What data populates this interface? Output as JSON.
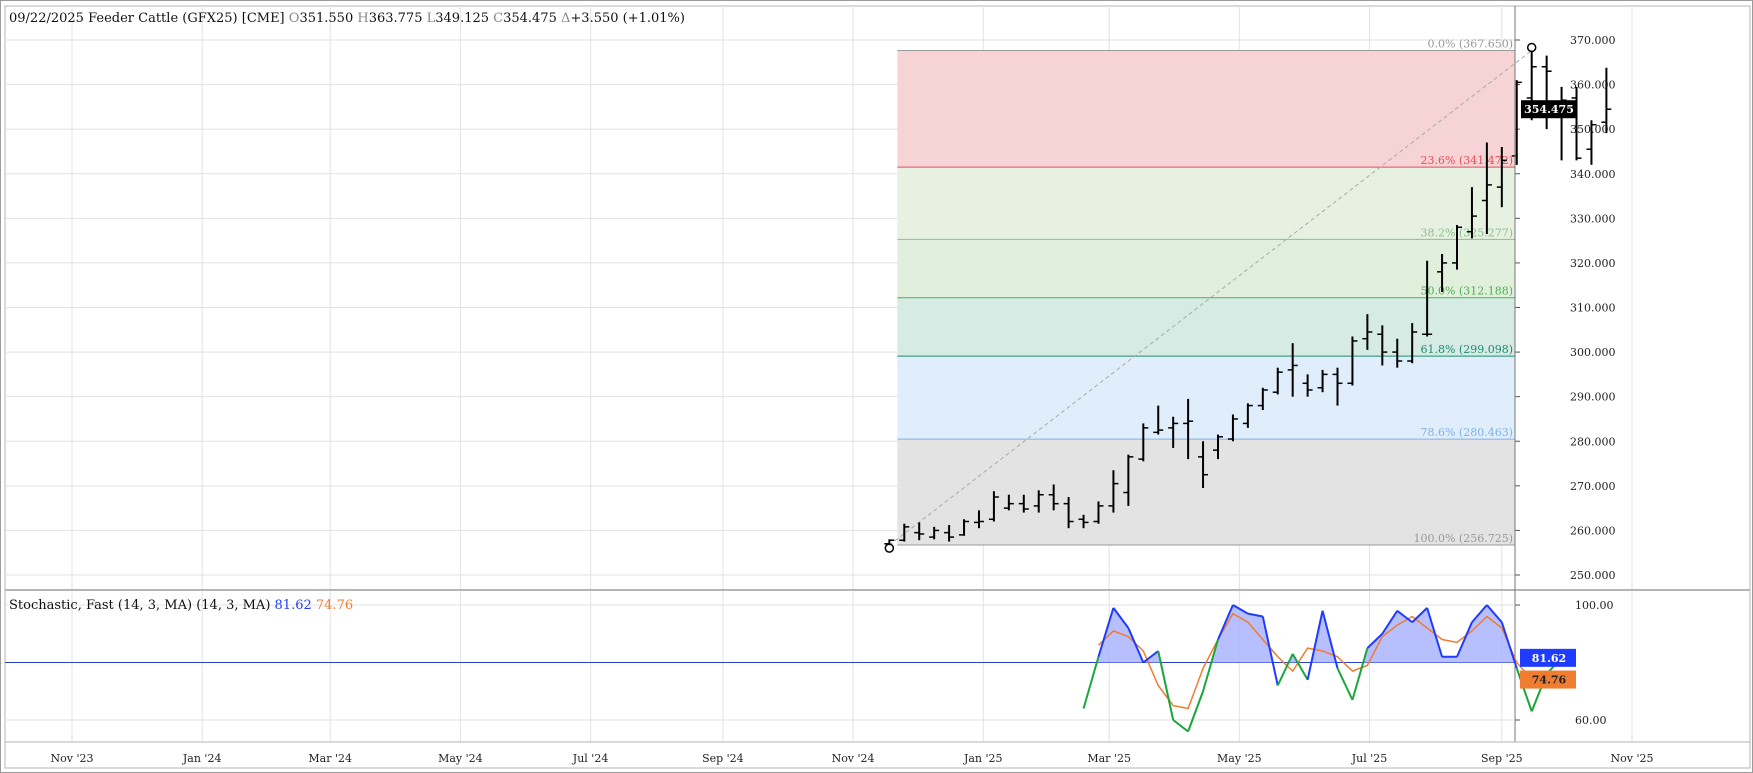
{
  "header": {
    "date": "09/22/2025",
    "instrument": "Feeder Cattle (GFX25) [CME]",
    "open_label": "O",
    "open": "351.550",
    "high_label": "H",
    "high": "363.775",
    "low_label": "L",
    "low": "349.125",
    "close_label": "C",
    "close": "354.475",
    "change_label": "Δ",
    "change": "+3.550 (+1.01%)"
  },
  "stoch_header": {
    "name": "Stochastic, Fast (14, 3, MA)",
    "params": "(14, 3, MA)",
    "k_value": "81.62",
    "d_value": "74.76"
  },
  "colors": {
    "up_bar": "#000000",
    "k_line_above": "#1f3bff",
    "k_line_below": "#19a63a",
    "d_line": "#f07c30",
    "k_fill": "#aab4ff",
    "price_tag_bg": "#000000",
    "k_tag_bg": "#1f3bff",
    "d_tag_bg": "#f07c30"
  },
  "chart_data": {
    "type": "ohlc",
    "price_axis": {
      "ylim": [
        245,
        373
      ],
      "ticks": [
        "370.000",
        "360.000",
        "350.000",
        "340.000",
        "330.000",
        "320.000",
        "310.000",
        "300.000",
        "290.000",
        "280.000",
        "270.000",
        "260.000",
        "250.000"
      ]
    },
    "time_axis": {
      "ticks": [
        {
          "label": "Nov '23",
          "date": "2023-11-01"
        },
        {
          "label": "Jan '24",
          "date": "2024-01-01"
        },
        {
          "label": "Mar '24",
          "date": "2024-03-01"
        },
        {
          "label": "May '24",
          "date": "2024-05-01"
        },
        {
          "label": "Jul '24",
          "date": "2024-07-01"
        },
        {
          "label": "Sep '24",
          "date": "2024-09-01"
        },
        {
          "label": "Nov '24",
          "date": "2024-11-01"
        },
        {
          "label": "Jan '25",
          "date": "2025-01-01"
        },
        {
          "label": "Mar '25",
          "date": "2025-03-01"
        },
        {
          "label": "May '25",
          "date": "2025-05-01"
        },
        {
          "label": "Jul '25",
          "date": "2025-07-01"
        },
        {
          "label": "Sep '25",
          "date": "2025-09-01"
        },
        {
          "label": "Nov '25",
          "date": "2025-11-01"
        }
      ]
    },
    "last_price_label": "354.475",
    "fibonacci": {
      "levels": [
        {
          "label": "0.0% (367.650)",
          "price": 367.65,
          "color": "#999999"
        },
        {
          "label": "23.6% (341.472)",
          "price": 341.472,
          "color": "#e0505a"
        },
        {
          "label": "38.2% (325.277)",
          "price": 325.277,
          "color": "#8cc08c"
        },
        {
          "label": "50.0% (312.188)",
          "price": 312.188,
          "color": "#4caf50"
        },
        {
          "label": "61.8% (299.098)",
          "price": 299.098,
          "color": "#1f8a70"
        },
        {
          "label": "78.6% (280.463)",
          "price": 280.463,
          "color": "#7fb2e8"
        },
        {
          "label": "100.0% (256.725)",
          "price": 256.725,
          "color": "#999999"
        }
      ],
      "zones": [
        {
          "from": 367.65,
          "to": 341.472,
          "color": "#f6d4d6"
        },
        {
          "from": 341.472,
          "to": 325.277,
          "color": "#e6f1e2"
        },
        {
          "from": 325.277,
          "to": 312.188,
          "color": "#e1f0dc"
        },
        {
          "from": 312.188,
          "to": 299.098,
          "color": "#d6ebe3"
        },
        {
          "from": 299.098,
          "to": 280.463,
          "color": "#e0eefb"
        },
        {
          "from": 280.463,
          "to": 256.725,
          "color": "#e3e3e3"
        }
      ],
      "start_date": "2024-11-18",
      "end_date": "2025-08-25"
    },
    "bars": [
      {
        "date": "2024-11-18",
        "o": 257.0,
        "h": 258.0,
        "l": 256.7,
        "c": 257.8
      },
      {
        "date": "2024-11-25",
        "o": 257.8,
        "h": 261.5,
        "l": 257.5,
        "c": 260.8
      },
      {
        "date": "2024-12-02",
        "o": 259.5,
        "h": 261.8,
        "l": 257.8,
        "c": 259.2
      },
      {
        "date": "2024-12-09",
        "o": 258.5,
        "h": 260.8,
        "l": 258.0,
        "c": 260.0
      },
      {
        "date": "2024-12-16",
        "o": 259.5,
        "h": 261.2,
        "l": 257.5,
        "c": 258.5
      },
      {
        "date": "2024-12-23",
        "o": 259.0,
        "h": 262.5,
        "l": 258.8,
        "c": 262.0
      },
      {
        "date": "2024-12-30",
        "o": 261.8,
        "h": 264.5,
        "l": 260.5,
        "c": 262.0
      },
      {
        "date": "2025-01-06",
        "o": 262.5,
        "h": 268.8,
        "l": 262.0,
        "c": 267.5
      },
      {
        "date": "2025-01-13",
        "o": 265.0,
        "h": 268.0,
        "l": 264.5,
        "c": 266.0
      },
      {
        "date": "2025-01-20",
        "o": 266.0,
        "h": 268.0,
        "l": 264.0,
        "c": 264.8
      },
      {
        "date": "2025-01-27",
        "o": 265.5,
        "h": 269.0,
        "l": 264.0,
        "c": 268.0
      },
      {
        "date": "2025-02-03",
        "o": 268.0,
        "h": 270.3,
        "l": 264.5,
        "c": 266.0
      },
      {
        "date": "2025-02-10",
        "o": 266.0,
        "h": 267.5,
        "l": 260.5,
        "c": 262.0
      },
      {
        "date": "2025-02-17",
        "o": 262.5,
        "h": 263.5,
        "l": 260.5,
        "c": 261.8
      },
      {
        "date": "2025-02-24",
        "o": 262.0,
        "h": 266.5,
        "l": 261.5,
        "c": 265.5
      },
      {
        "date": "2025-03-03",
        "o": 265.5,
        "h": 273.5,
        "l": 264.0,
        "c": 270.5
      },
      {
        "date": "2025-03-10",
        "o": 268.5,
        "h": 277.0,
        "l": 265.5,
        "c": 276.5
      },
      {
        "date": "2025-03-17",
        "o": 276.0,
        "h": 284.0,
        "l": 275.5,
        "c": 283.0
      },
      {
        "date": "2025-03-24",
        "o": 282.0,
        "h": 288.0,
        "l": 281.5,
        "c": 282.5
      },
      {
        "date": "2025-03-31",
        "o": 283.0,
        "h": 285.5,
        "l": 278.5,
        "c": 284.0
      },
      {
        "date": "2025-04-07",
        "o": 284.0,
        "h": 289.5,
        "l": 276.0,
        "c": 284.5
      },
      {
        "date": "2025-04-14",
        "o": 276.5,
        "h": 280.0,
        "l": 269.5,
        "c": 272.5
      },
      {
        "date": "2025-04-21",
        "o": 278.0,
        "h": 281.5,
        "l": 276.0,
        "c": 281.0
      },
      {
        "date": "2025-04-28",
        "o": 280.5,
        "h": 286.0,
        "l": 280.0,
        "c": 285.0
      },
      {
        "date": "2025-05-05",
        "o": 284.0,
        "h": 288.5,
        "l": 283.0,
        "c": 288.0
      },
      {
        "date": "2025-05-12",
        "o": 288.0,
        "h": 292.0,
        "l": 287.0,
        "c": 291.5
      },
      {
        "date": "2025-05-19",
        "o": 291.0,
        "h": 296.5,
        "l": 290.5,
        "c": 295.5
      },
      {
        "date": "2025-05-26",
        "o": 296.0,
        "h": 302.0,
        "l": 290.0,
        "c": 297.0
      },
      {
        "date": "2025-06-02",
        "o": 293.0,
        "h": 295.0,
        "l": 290.0,
        "c": 291.5
      },
      {
        "date": "2025-06-09",
        "o": 292.0,
        "h": 296.0,
        "l": 291.0,
        "c": 295.0
      },
      {
        "date": "2025-06-16",
        "o": 295.0,
        "h": 296.5,
        "l": 288.0,
        "c": 293.0
      },
      {
        "date": "2025-06-23",
        "o": 293.0,
        "h": 303.5,
        "l": 292.5,
        "c": 302.5
      },
      {
        "date": "2025-06-30",
        "o": 303.0,
        "h": 308.5,
        "l": 300.5,
        "c": 304.5
      },
      {
        "date": "2025-07-07",
        "o": 304.0,
        "h": 306.0,
        "l": 297.0,
        "c": 300.0
      },
      {
        "date": "2025-07-14",
        "o": 300.0,
        "h": 303.0,
        "l": 296.5,
        "c": 298.0
      },
      {
        "date": "2025-07-21",
        "o": 298.0,
        "h": 306.5,
        "l": 297.5,
        "c": 304.5
      },
      {
        "date": "2025-07-28",
        "o": 304.0,
        "h": 320.5,
        "l": 303.5,
        "c": 304.0
      },
      {
        "date": "2025-08-04",
        "o": 318.0,
        "h": 322.0,
        "l": 313.5,
        "c": 320.0
      },
      {
        "date": "2025-08-11",
        "o": 320.0,
        "h": 328.5,
        "l": 318.5,
        "c": 328.0
      },
      {
        "date": "2025-08-18",
        "o": 327.0,
        "h": 337.0,
        "l": 325.5,
        "c": 330.5
      },
      {
        "date": "2025-08-25",
        "o": 334.0,
        "h": 347.0,
        "l": 326.5,
        "c": 337.5
      },
      {
        "date": "2025-09-01",
        "o": 337.0,
        "h": 346.0,
        "l": 332.5,
        "c": 343.0
      },
      {
        "date": "2025-09-08",
        "o": 344.0,
        "h": 361.0,
        "l": 342.0,
        "c": 360.5
      },
      {
        "date": "2025-09-15",
        "o": 357.0,
        "h": 367.65,
        "l": 352.0,
        "c": 364.0
      },
      {
        "date": "2025-09-22",
        "o": 364.0,
        "h": 366.5,
        "l": 350.0,
        "c": 363.0
      },
      {
        "date": "2025-09-29",
        "o": 355.0,
        "h": 359.5,
        "l": 343.0,
        "c": 356.5
      },
      {
        "date": "2025-10-06",
        "o": 357.0,
        "h": 359.5,
        "l": 343.0,
        "c": 343.5
      },
      {
        "date": "2025-10-13",
        "o": 345.5,
        "h": 352.0,
        "l": 342.0,
        "c": 351.0
      },
      {
        "date": "2025-10-20",
        "o": 351.55,
        "h": 363.775,
        "l": 349.125,
        "c": 354.475
      }
    ],
    "stochastic": {
      "ylim": [
        50,
        105
      ],
      "ticks": [
        "100.00",
        "60.00"
      ],
      "reference_level": 80,
      "k_label": "81.62",
      "d_label": "74.76",
      "k": [
        [
          "2025-02-17",
          64.0
        ],
        [
          "2025-02-24",
          82.0
        ],
        [
          "2025-03-03",
          99.0
        ],
        [
          "2025-03-10",
          92.0
        ],
        [
          "2025-03-17",
          80.0
        ],
        [
          "2025-03-24",
          84.0
        ],
        [
          "2025-03-31",
          60.0
        ],
        [
          "2025-04-07",
          56.0
        ],
        [
          "2025-04-14",
          70.0
        ],
        [
          "2025-04-21",
          88.0
        ],
        [
          "2025-04-28",
          100.0
        ],
        [
          "2025-05-05",
          97.0
        ],
        [
          "2025-05-12",
          96.0
        ],
        [
          "2025-05-19",
          72.0
        ],
        [
          "2025-05-26",
          83.0
        ],
        [
          "2025-06-02",
          74.0
        ],
        [
          "2025-06-09",
          98.0
        ],
        [
          "2025-06-16",
          78.0
        ],
        [
          "2025-06-23",
          67.0
        ],
        [
          "2025-06-30",
          85.0
        ],
        [
          "2025-07-07",
          90.0
        ],
        [
          "2025-07-14",
          98.0
        ],
        [
          "2025-07-21",
          94.0
        ],
        [
          "2025-07-28",
          99.0
        ],
        [
          "2025-08-04",
          82.0
        ],
        [
          "2025-08-11",
          82.0
        ],
        [
          "2025-08-18",
          94.0
        ],
        [
          "2025-08-25",
          100.0
        ],
        [
          "2025-09-01",
          94.0
        ],
        [
          "2025-09-08",
          78.0
        ],
        [
          "2025-09-15",
          63.0
        ],
        [
          "2025-09-22",
          76.0
        ],
        [
          "2025-09-29",
          81.62
        ]
      ],
      "d": [
        [
          "2025-02-24",
          86.0
        ],
        [
          "2025-03-03",
          91.0
        ],
        [
          "2025-03-10",
          89.0
        ],
        [
          "2025-03-17",
          84.0
        ],
        [
          "2025-03-24",
          72.0
        ],
        [
          "2025-03-31",
          65.0
        ],
        [
          "2025-04-07",
          64.0
        ],
        [
          "2025-04-14",
          78.0
        ],
        [
          "2025-04-21",
          88.0
        ],
        [
          "2025-04-28",
          97.0
        ],
        [
          "2025-05-05",
          94.0
        ],
        [
          "2025-05-12",
          88.0
        ],
        [
          "2025-05-19",
          82.0
        ],
        [
          "2025-05-26",
          77.0
        ],
        [
          "2025-06-02",
          85.0
        ],
        [
          "2025-06-09",
          84.0
        ],
        [
          "2025-06-16",
          82.0
        ],
        [
          "2025-06-23",
          77.0
        ],
        [
          "2025-06-30",
          79.0
        ],
        [
          "2025-07-07",
          89.0
        ],
        [
          "2025-07-14",
          93.0
        ],
        [
          "2025-07-21",
          96.0
        ],
        [
          "2025-07-28",
          92.0
        ],
        [
          "2025-08-04",
          88.0
        ],
        [
          "2025-08-11",
          87.0
        ],
        [
          "2025-08-18",
          91.0
        ],
        [
          "2025-08-25",
          96.0
        ],
        [
          "2025-09-01",
          92.0
        ],
        [
          "2025-09-08",
          80.0
        ],
        [
          "2025-09-15",
          74.0
        ],
        [
          "2025-09-22",
          74.76
        ]
      ]
    }
  }
}
